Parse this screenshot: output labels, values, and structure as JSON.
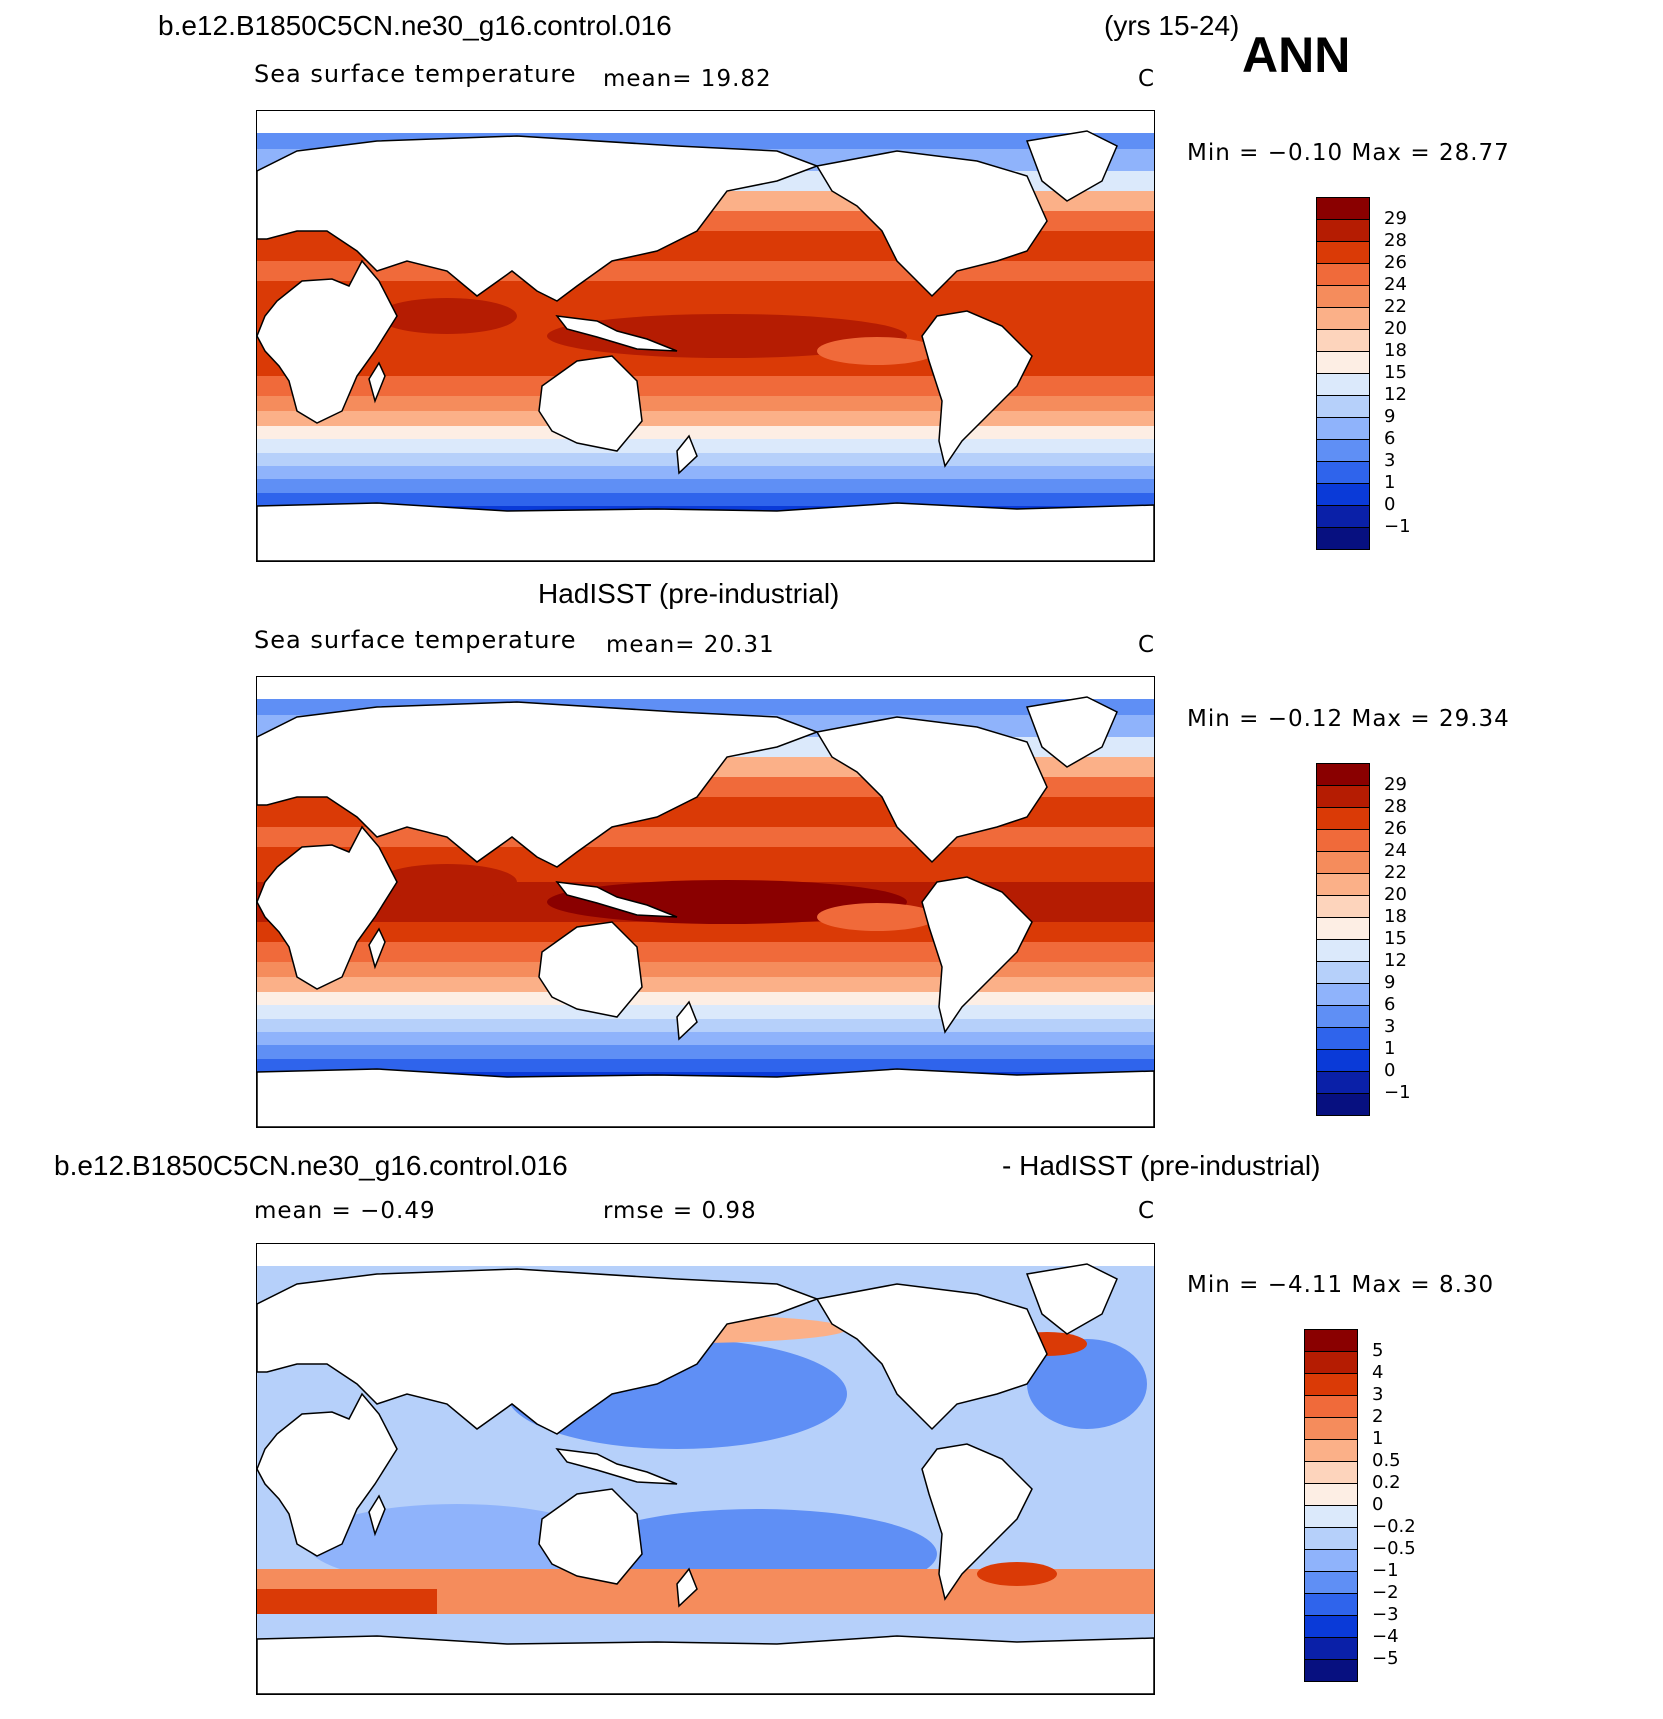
{
  "header": {
    "case_title": "b.e12.B1850C5CN.ne30_g16.control.016",
    "years": "(yrs 15-24)",
    "season": "ANN"
  },
  "panels": [
    {
      "id": "model",
      "title": "",
      "variable": "Sea surface temperature",
      "stat1": "mean=   19.82",
      "stat2": "",
      "units": "C",
      "minmax": "Min =   −0.10 Max =   28.77"
    },
    {
      "id": "obs",
      "title": "HadISST (pre-industrial)",
      "variable": "Sea surface temperature",
      "stat1": "mean=   20.31",
      "stat2": "",
      "units": "C",
      "minmax": "Min =   −0.12 Max =   29.34"
    },
    {
      "id": "diff",
      "title_left": "b.e12.B1850C5CN.ne30_g16.control.016",
      "title_right": "- HadISST (pre-industrial)",
      "variable": "",
      "stat1": "mean =   −0.49",
      "stat2": "rmse =    0.98",
      "units": "C",
      "minmax": "Min =   −4.11 Max =    8.30"
    }
  ],
  "chart_data": [
    {
      "type": "heatmap",
      "title": "Sea surface temperature",
      "subtitle": "b.e12.B1850C5CN.ne30_g16.control.016 (yrs 15-24) ANN",
      "units": "C",
      "mean": 19.82,
      "min": -0.1,
      "max": 28.77,
      "colorbar_levels": [
        "29",
        "28",
        "26",
        "24",
        "22",
        "20",
        "18",
        "15",
        "12",
        "9",
        "6",
        "3",
        "1",
        "0",
        "−1"
      ],
      "colorbar_colors": [
        "#8a0000",
        "#b51c02",
        "#da3a06",
        "#f06a3a",
        "#f58c5c",
        "#fbb088",
        "#fdd4bc",
        "#fdeee4",
        "#dbe9fb",
        "#b6d0fa",
        "#8fb3fb",
        "#5f8ff5",
        "#2f64ec",
        "#0a3ad8",
        "#0a20a8",
        "#071080"
      ]
    },
    {
      "type": "heatmap",
      "title": "Sea surface temperature",
      "subtitle": "HadISST (pre-industrial)",
      "units": "C",
      "mean": 20.31,
      "min": -0.12,
      "max": 29.34,
      "colorbar_levels": [
        "29",
        "28",
        "26",
        "24",
        "22",
        "20",
        "18",
        "15",
        "12",
        "9",
        "6",
        "3",
        "1",
        "0",
        "−1"
      ],
      "colorbar_colors": [
        "#8a0000",
        "#b51c02",
        "#da3a06",
        "#f06a3a",
        "#f58c5c",
        "#fbb088",
        "#fdd4bc",
        "#fdeee4",
        "#dbe9fb",
        "#b6d0fa",
        "#8fb3fb",
        "#5f8ff5",
        "#2f64ec",
        "#0a3ad8",
        "#0a20a8",
        "#071080"
      ]
    },
    {
      "type": "heatmap",
      "title": "b.e12.B1850C5CN.ne30_g16.control.016 - HadISST (pre-industrial)",
      "units": "C",
      "mean": -0.49,
      "rmse": 0.98,
      "min": -4.11,
      "max": 8.3,
      "colorbar_levels": [
        "5",
        "4",
        "3",
        "2",
        "1",
        "0.5",
        "0.2",
        "0",
        "−0.2",
        "−0.5",
        "−1",
        "−2",
        "−3",
        "−4",
        "−5"
      ],
      "colorbar_colors": [
        "#8a0000",
        "#b51c02",
        "#da3a06",
        "#f06a3a",
        "#f58c5c",
        "#fbb088",
        "#fdd4bc",
        "#fdeee4",
        "#dbe9fb",
        "#b6d0fa",
        "#8fb3fb",
        "#5f8ff5",
        "#2f64ec",
        "#0a3ad8",
        "#0a20a8",
        "#071080"
      ]
    }
  ]
}
